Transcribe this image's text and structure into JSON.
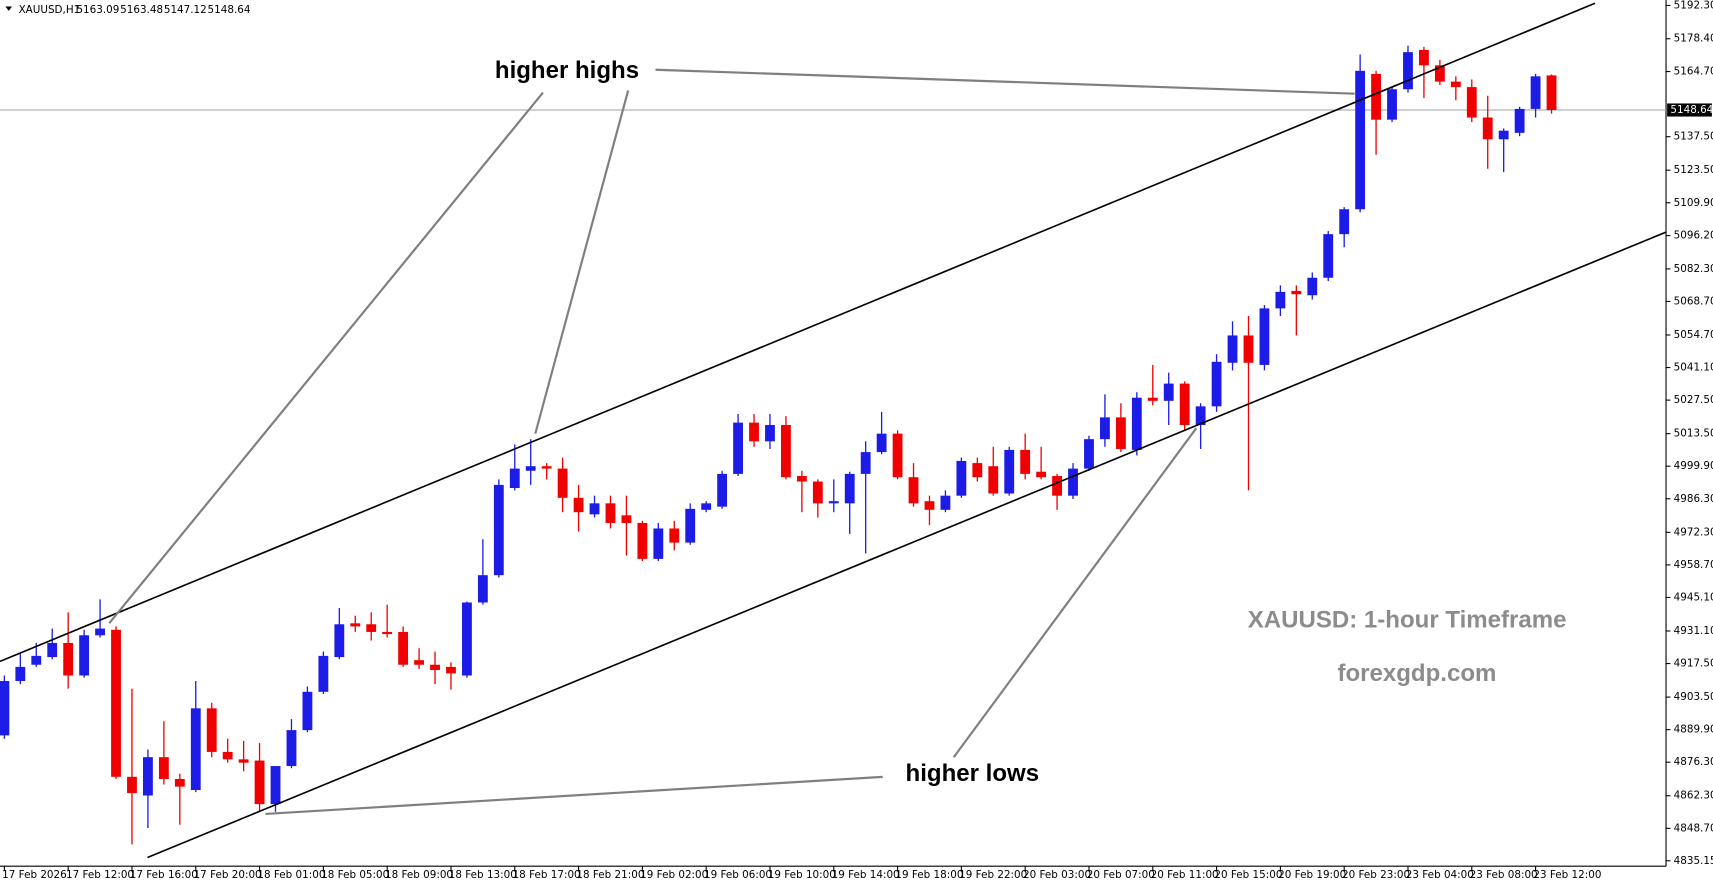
{
  "chart_data": {
    "type": "candlestick",
    "symbol": "XAUUSD,H1",
    "annotations": [
      "higher highs",
      "higher lows",
      "XAUUSD: 1-hour Timeframe",
      "forexgdp.com"
    ],
    "up_color": "#1c1ce6",
    "down_color": "#f00000",
    "categories": [
      "17 Feb 2026",
      null,
      null,
      null,
      "17 Feb 12:00",
      null,
      null,
      null,
      "17 Feb 16:00",
      null,
      null,
      null,
      "17 Feb 20:00",
      null,
      null,
      null,
      "18 Feb 01:00",
      null,
      null,
      null,
      "18 Feb 05:00",
      null,
      null,
      null,
      "18 Feb 09:00",
      null,
      null,
      null,
      "18 Feb 13:00",
      null,
      null,
      null,
      "18 Feb 17:00",
      null,
      null,
      null,
      "18 Feb 21:00",
      null,
      null,
      null,
      "19 Feb 02:00",
      null,
      null,
      null,
      "19 Feb 06:00",
      null,
      null,
      null,
      "19 Feb 10:00",
      null,
      null,
      null,
      "19 Feb 14:00",
      null,
      null,
      null,
      "19 Feb 18:00",
      null,
      null,
      null,
      "19 Feb 22:00",
      null,
      null,
      null,
      "20 Feb 03:00",
      null,
      null,
      null,
      "20 Feb 07:00",
      null,
      null,
      null,
      "20 Feb 11:00",
      null,
      null,
      null,
      "20 Feb 15:00",
      null,
      null,
      null,
      "20 Feb 19:00",
      null,
      null,
      null,
      "20 Feb 23:00",
      null,
      null,
      null,
      "23 Feb 04:00",
      null,
      null,
      null,
      "23 Feb 08:00",
      null,
      null,
      null,
      "23 Feb 12:00",
      null
    ],
    "ohlc": {
      "open": [
        4887.5,
        4910.2,
        4917.0,
        4920.2,
        4926.1,
        4912.5,
        4929.3,
        4931.6,
        4870.2,
        4862.4,
        4878.4,
        4869.3,
        4864.7,
        4898.8,
        4880.6,
        4877.5,
        4877.0,
        4858.8,
        4874.7,
        4889.7,
        4905.7,
        4920.2,
        4934.3,
        4933.9,
        4930.7,
        4930.7,
        4918.9,
        4917.0,
        4916.1,
        4912.5,
        4943.0,
        4954.4,
        4990.8,
        4998.0,
        4999.9,
        4998.9,
        4986.7,
        4979.8,
        4984.4,
        4979.4,
        4976.2,
        4961.2,
        4973.9,
        4968.0,
        4981.7,
        4983.0,
        4996.7,
        5018.1,
        5010.3,
        5017.1,
        4995.8,
        4993.5,
        4984.4,
        4984.4,
        4996.7,
        5005.8,
        5013.5,
        4995.3,
        4985.3,
        4981.7,
        4987.6,
        5001.2,
        4999.9,
        4988.5,
        5006.7,
        4997.6,
        4995.8,
        4987.6,
        4998.9,
        5011.2,
        5020.3,
        5006.7,
        5028.5,
        5027.2,
        5034.4,
        5017.1,
        5024.9,
        5043.1,
        5054.5,
        5042.2,
        5065.8,
        5073.1,
        5071.3,
        5078.6,
        5096.8,
        5107.2,
        5163.7,
        5144.6,
        5157.3,
        5173.7,
        5167.3,
        5160.5,
        5158.2,
        5145.5,
        5136.4,
        5139.1,
        5149.1,
        5163.09
      ],
      "high": [
        4912.5,
        4921.6,
        4926.1,
        4932.1,
        4938.9,
        4931.6,
        4944.3,
        4933.0,
        4907.0,
        4881.6,
        4893.4,
        4871.5,
        4910.2,
        4901.1,
        4886.1,
        4885.2,
        4884.3,
        4874.7,
        4894.3,
        4907.9,
        4922.5,
        4940.7,
        4937.5,
        4938.9,
        4942.1,
        4933.0,
        4923.9,
        4922.5,
        4918.0,
        4943.4,
        4969.4,
        4994.4,
        5009.0,
        5011.2,
        5001.2,
        5003.5,
        4992.1,
        4987.6,
        4987.6,
        4987.6,
        4977.1,
        4976.2,
        4977.1,
        4984.4,
        4985.3,
        4998.0,
        5021.7,
        5021.7,
        5021.7,
        5020.8,
        4998.0,
        4994.4,
        4994.4,
        4997.6,
        5010.3,
        5022.6,
        5014.9,
        5001.2,
        4987.6,
        4989.8,
        5003.5,
        5003.5,
        5008.0,
        5008.0,
        5013.5,
        5008.0,
        4996.7,
        5001.2,
        5012.6,
        5029.9,
        5026.2,
        5030.8,
        5042.2,
        5039.0,
        5035.3,
        5026.2,
        5046.7,
        5060.4,
        5062.6,
        5067.2,
        5075.4,
        5075.4,
        5080.8,
        5098.1,
        5108.1,
        5171.8,
        5165.0,
        5158.2,
        5175.5,
        5175.0,
        5169.6,
        5162.7,
        5161.4,
        5154.6,
        5140.9,
        5150.0,
        5163.7,
        5163.48
      ],
      "low": [
        4886.1,
        4908.9,
        4916.1,
        4919.3,
        4907.0,
        4911.6,
        4928.4,
        4869.3,
        4842.0,
        4848.8,
        4867.0,
        4850.2,
        4863.8,
        4878.4,
        4876.1,
        4872.5,
        4855.6,
        4855.6,
        4873.8,
        4888.8,
        4904.8,
        4919.3,
        4930.7,
        4927.1,
        4928.4,
        4916.1,
        4915.2,
        4908.9,
        4906.6,
        4911.6,
        4942.1,
        4953.4,
        4989.8,
        4992.1,
        4994.4,
        4980.7,
        4972.6,
        4978.5,
        4973.9,
        4962.6,
        4960.3,
        4960.3,
        4964.8,
        4967.1,
        4980.7,
        4982.1,
        4995.8,
        5008.0,
        5007.1,
        4994.4,
        4980.7,
        4978.5,
        4980.7,
        4971.6,
        4963.5,
        5004.9,
        4994.4,
        4983.0,
        4975.3,
        4980.7,
        4986.7,
        4993.5,
        4987.6,
        4987.6,
        4994.4,
        4994.4,
        4981.7,
        4986.2,
        4998.0,
        5008.0,
        5005.8,
        5004.4,
        5025.3,
        5017.1,
        5014.9,
        5007.1,
        5022.6,
        5039.9,
        4989.8,
        5039.9,
        5062.6,
        5054.5,
        5069.5,
        5077.2,
        5091.3,
        5105.9,
        5130.0,
        5143.6,
        5155.9,
        5153.6,
        5159.1,
        5152.7,
        5143.6,
        5124.1,
        5122.7,
        5137.7,
        5145.5,
        5147.12
      ],
      "close": [
        4910.2,
        4916.1,
        4920.7,
        4926.1,
        4912.5,
        4929.3,
        4932.1,
        4870.2,
        4863.4,
        4878.4,
        4869.3,
        4866.1,
        4898.8,
        4880.6,
        4877.5,
        4876.1,
        4858.8,
        4874.7,
        4889.7,
        4905.7,
        4920.7,
        4933.9,
        4933.0,
        4930.7,
        4929.8,
        4917.0,
        4917.0,
        4914.8,
        4913.4,
        4943.0,
        4954.4,
        4992.1,
        4998.9,
        4999.9,
        4998.9,
        4986.7,
        4980.7,
        4984.4,
        4976.2,
        4976.2,
        4961.2,
        4973.9,
        4968.0,
        4982.1,
        4984.4,
        4996.7,
        5018.1,
        5010.3,
        5017.1,
        4995.3,
        4993.5,
        4984.4,
        4985.3,
        4996.7,
        5005.8,
        5013.5,
        4995.3,
        4984.4,
        4981.7,
        4987.6,
        5002.1,
        4995.3,
        4988.5,
        5006.7,
        4996.7,
        4995.3,
        4987.6,
        4998.9,
        5011.2,
        5020.3,
        5007.1,
        5028.5,
        5027.2,
        5034.4,
        5017.1,
        5024.9,
        5043.5,
        5054.5,
        5043.1,
        5065.8,
        5072.7,
        5071.7,
        5078.6,
        5096.8,
        5107.2,
        5165.0,
        5144.6,
        5157.3,
        5172.8,
        5167.3,
        5160.5,
        5158.2,
        5145.5,
        5136.4,
        5140.0,
        5149.1,
        5162.7,
        5148.64
      ]
    },
    "ylim": [
      4835.15,
      5192.3
    ],
    "yticks": [
      {
        "value": 5192.3,
        "label": "5192.30"
      },
      {
        "value": 5178.4,
        "label": "5178.40"
      },
      {
        "value": 5164.7,
        "label": "5164.70"
      },
      {
        "value": 5137.5,
        "label": "5137.50"
      },
      {
        "value": 5123.5,
        "label": "5123.50"
      },
      {
        "value": 5109.9,
        "label": "5109.90"
      },
      {
        "value": 5096.2,
        "label": "5096.20"
      },
      {
        "value": 5082.3,
        "label": "5082.30"
      },
      {
        "value": 5068.7,
        "label": "5068.70"
      },
      {
        "value": 5054.7,
        "label": "5054.70"
      },
      {
        "value": 5041.1,
        "label": "5041.10"
      },
      {
        "value": 5027.5,
        "label": "5027.50"
      },
      {
        "value": 5013.5,
        "label": "5013.50"
      },
      {
        "value": 4999.9,
        "label": "4999.90"
      },
      {
        "value": 4986.3,
        "label": "4986.30"
      },
      {
        "value": 4972.3,
        "label": "4972.30"
      },
      {
        "value": 4958.7,
        "label": "4958.70"
      },
      {
        "value": 4945.1,
        "label": "4945.10"
      },
      {
        "value": 4931.1,
        "label": "4931.10"
      },
      {
        "value": 4917.5,
        "label": "4917.50"
      },
      {
        "value": 4903.5,
        "label": "4903.50"
      },
      {
        "value": 4889.9,
        "label": "4889.90"
      },
      {
        "value": 4876.3,
        "label": "4876.30"
      },
      {
        "value": 4862.3,
        "label": "4862.30"
      },
      {
        "value": 4848.7,
        "label": "4848.70"
      },
      4835.15
    ],
    "grid": false
  }
}
